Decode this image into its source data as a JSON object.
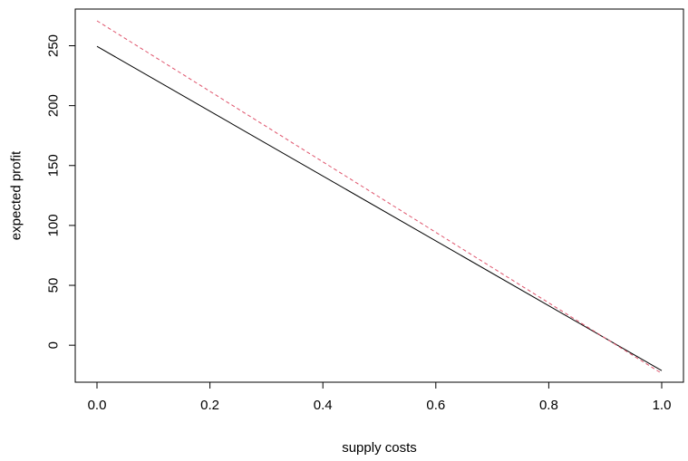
{
  "chart_data": {
    "type": "line",
    "title": "",
    "xlabel": "supply costs",
    "ylabel": "expected profit",
    "xlim": [
      0.0,
      1.0
    ],
    "ylim": [
      -21.8,
      270.8
    ],
    "grid": false,
    "legend": "none",
    "x_ticks": [
      0.0,
      0.2,
      0.4,
      0.6,
      0.8,
      1.0
    ],
    "x_tick_labels": [
      "0.0",
      "0.2",
      "0.4",
      "0.6",
      "0.8",
      "1.0"
    ],
    "y_ticks": [
      0,
      50,
      100,
      150,
      200,
      250
    ],
    "y_tick_labels": [
      "0",
      "50",
      "100",
      "150",
      "200",
      "250"
    ],
    "series": [
      {
        "style": "solid",
        "color": "#000000",
        "x": [
          0.0,
          1.0
        ],
        "y": [
          249.5,
          -21.2
        ]
      },
      {
        "style": "dashed",
        "color": "#df536b",
        "x": [
          0.0,
          1.0
        ],
        "y": [
          270.8,
          -23.5
        ]
      }
    ]
  }
}
